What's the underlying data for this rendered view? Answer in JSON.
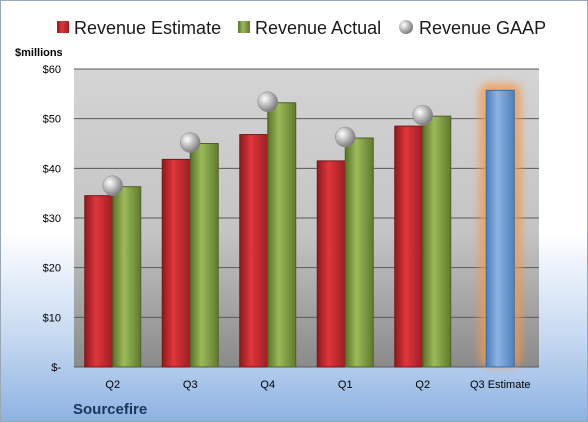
{
  "chart_data": {
    "type": "bar",
    "unit_label": "$millions",
    "brand": "Sourcefire",
    "categories": [
      "Q2",
      "Q3",
      "Q4",
      "Q1",
      "Q2",
      "Q3 Estimate"
    ],
    "y_ticks": [
      "$-",
      "$10",
      "$20",
      "$30",
      "$40",
      "$50",
      "$60"
    ],
    "ylim": [
      0,
      60
    ],
    "grid": true,
    "legend_position": "top",
    "series": [
      {
        "name": "Revenue Estimate",
        "type": "bar",
        "color": "#c0272d",
        "values": [
          34.5,
          41.8,
          46.8,
          41.5,
          48.5,
          null
        ]
      },
      {
        "name": "Revenue Actual",
        "type": "bar",
        "color": "#77933c",
        "values": [
          36.3,
          45.0,
          53.2,
          46.1,
          50.5,
          null
        ]
      },
      {
        "name": "Revenue GAAP",
        "type": "marker",
        "color": "#a6a6a6",
        "values": [
          36.5,
          45.2,
          53.4,
          46.3,
          50.7,
          null
        ]
      }
    ],
    "projected": {
      "category": "Q3 Estimate",
      "value": 55.7,
      "color": "#6d9ed7",
      "glow": "#f79646"
    }
  }
}
